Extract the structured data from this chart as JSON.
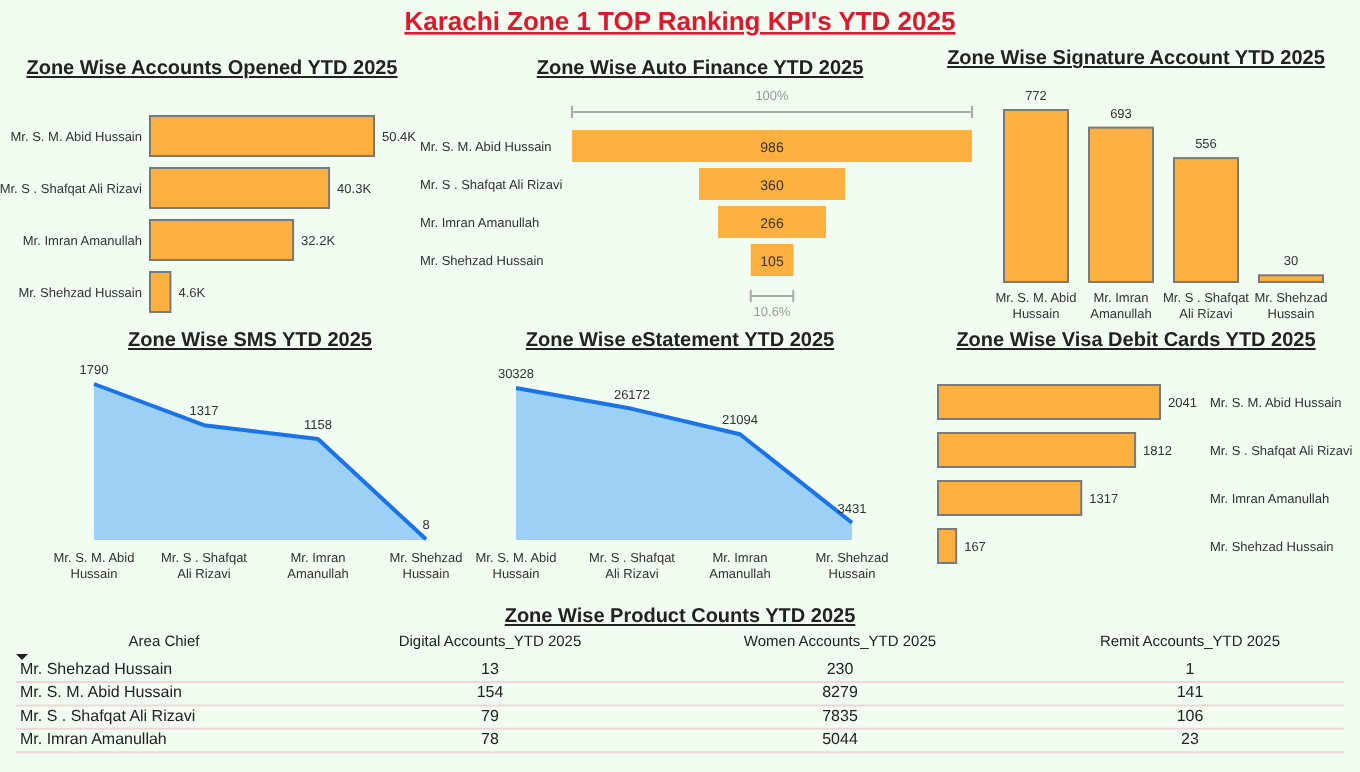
{
  "chart_data": [
    {
      "type": "other",
      "title": "Karachi Zone 1 TOP Ranking KPI's YTD 2025"
    },
    {
      "type": "bar",
      "orientation": "horizontal",
      "title": "Zone Wise Accounts Opened YTD 2025",
      "categories": [
        "Mr. S. M. Abid Hussain",
        "Mr. S . Shafqat Ali Rizavi",
        "Mr. Imran Amanullah",
        "Mr. Shehzad Hussain"
      ],
      "values": [
        50400,
        40300,
        32200,
        4600
      ],
      "value_labels": [
        "50.4K",
        "40.3K",
        "32.2K",
        "4.6K"
      ],
      "color": "#fbb040"
    },
    {
      "type": "other",
      "title": "Zone Wise Auto Finance YTD 2025",
      "categories": [
        "Mr. S. M. Abid Hussain",
        "Mr. S . Shafqat Ali Rizavi",
        "Mr. Imran Amanullah",
        "Mr. Shehzad Hussain"
      ],
      "values": [
        986,
        360,
        266,
        105
      ],
      "data_labels": true,
      "color": "#fbb040",
      "annotations": [
        "100%",
        "10.6%"
      ]
    },
    {
      "type": "bar",
      "title": "Zone Wise Signature Account YTD 2025",
      "categories": [
        "Mr. S. M. Abid Hussain",
        "Mr. Imran Amanullah",
        "Mr. S . Shafqat Ali Rizavi",
        "Mr. Shehzad Hussain"
      ],
      "values": [
        772,
        693,
        556,
        30
      ],
      "data_labels": true,
      "color": "#fbb040"
    },
    {
      "type": "area",
      "title": "Zone Wise SMS YTD 2025",
      "categories": [
        "Mr. S. M. Abid Hussain",
        "Mr. S . Shafqat Ali Rizavi",
        "Mr. Imran Amanullah",
        "Mr. Shehzad Hussain"
      ],
      "values": [
        1790,
        1317,
        1158,
        8
      ],
      "data_labels": true,
      "color": "#1a73e8"
    },
    {
      "type": "area",
      "title": "Zone Wise eStatement YTD 2025",
      "categories": [
        "Mr. S. M. Abid Hussain",
        "Mr. S . Shafqat Ali Rizavi",
        "Mr. Imran Amanullah",
        "Mr. Shehzad Hussain"
      ],
      "values": [
        30328,
        26172,
        21094,
        3431
      ],
      "data_labels": true,
      "color": "#1a73e8"
    },
    {
      "type": "bar",
      "orientation": "horizontal",
      "title": "Zone Wise Visa Debit Cards YTD 2025",
      "categories": [
        "Mr. S. M. Abid Hussain",
        "Mr. S . Shafqat Ali Rizavi",
        "Mr. Imran Amanullah",
        "Mr. Shehzad Hussain"
      ],
      "values": [
        2041,
        1812,
        1317,
        167
      ],
      "data_labels": true,
      "color": "#fbb040"
    },
    {
      "type": "heatmap",
      "title": "Zone Wise Product Counts YTD 2025",
      "ylabel": "Area Chief",
      "categories": [
        "Digital Accounts_YTD 2025",
        "Women Accounts_YTD 2025",
        "Remit Accounts_YTD 2025"
      ],
      "y_categories": [
        "Mr. Shehzad Hussain",
        "Mr. S. M. Abid Hussain",
        "Mr. S . Shafqat Ali Rizavi",
        "Mr. Imran Amanullah"
      ],
      "cells": [
        [
          13,
          230,
          1
        ],
        [
          154,
          8279,
          141
        ],
        [
          79,
          7835,
          106
        ],
        [
          78,
          5044,
          23
        ]
      ],
      "data_labels": true
    }
  ]
}
